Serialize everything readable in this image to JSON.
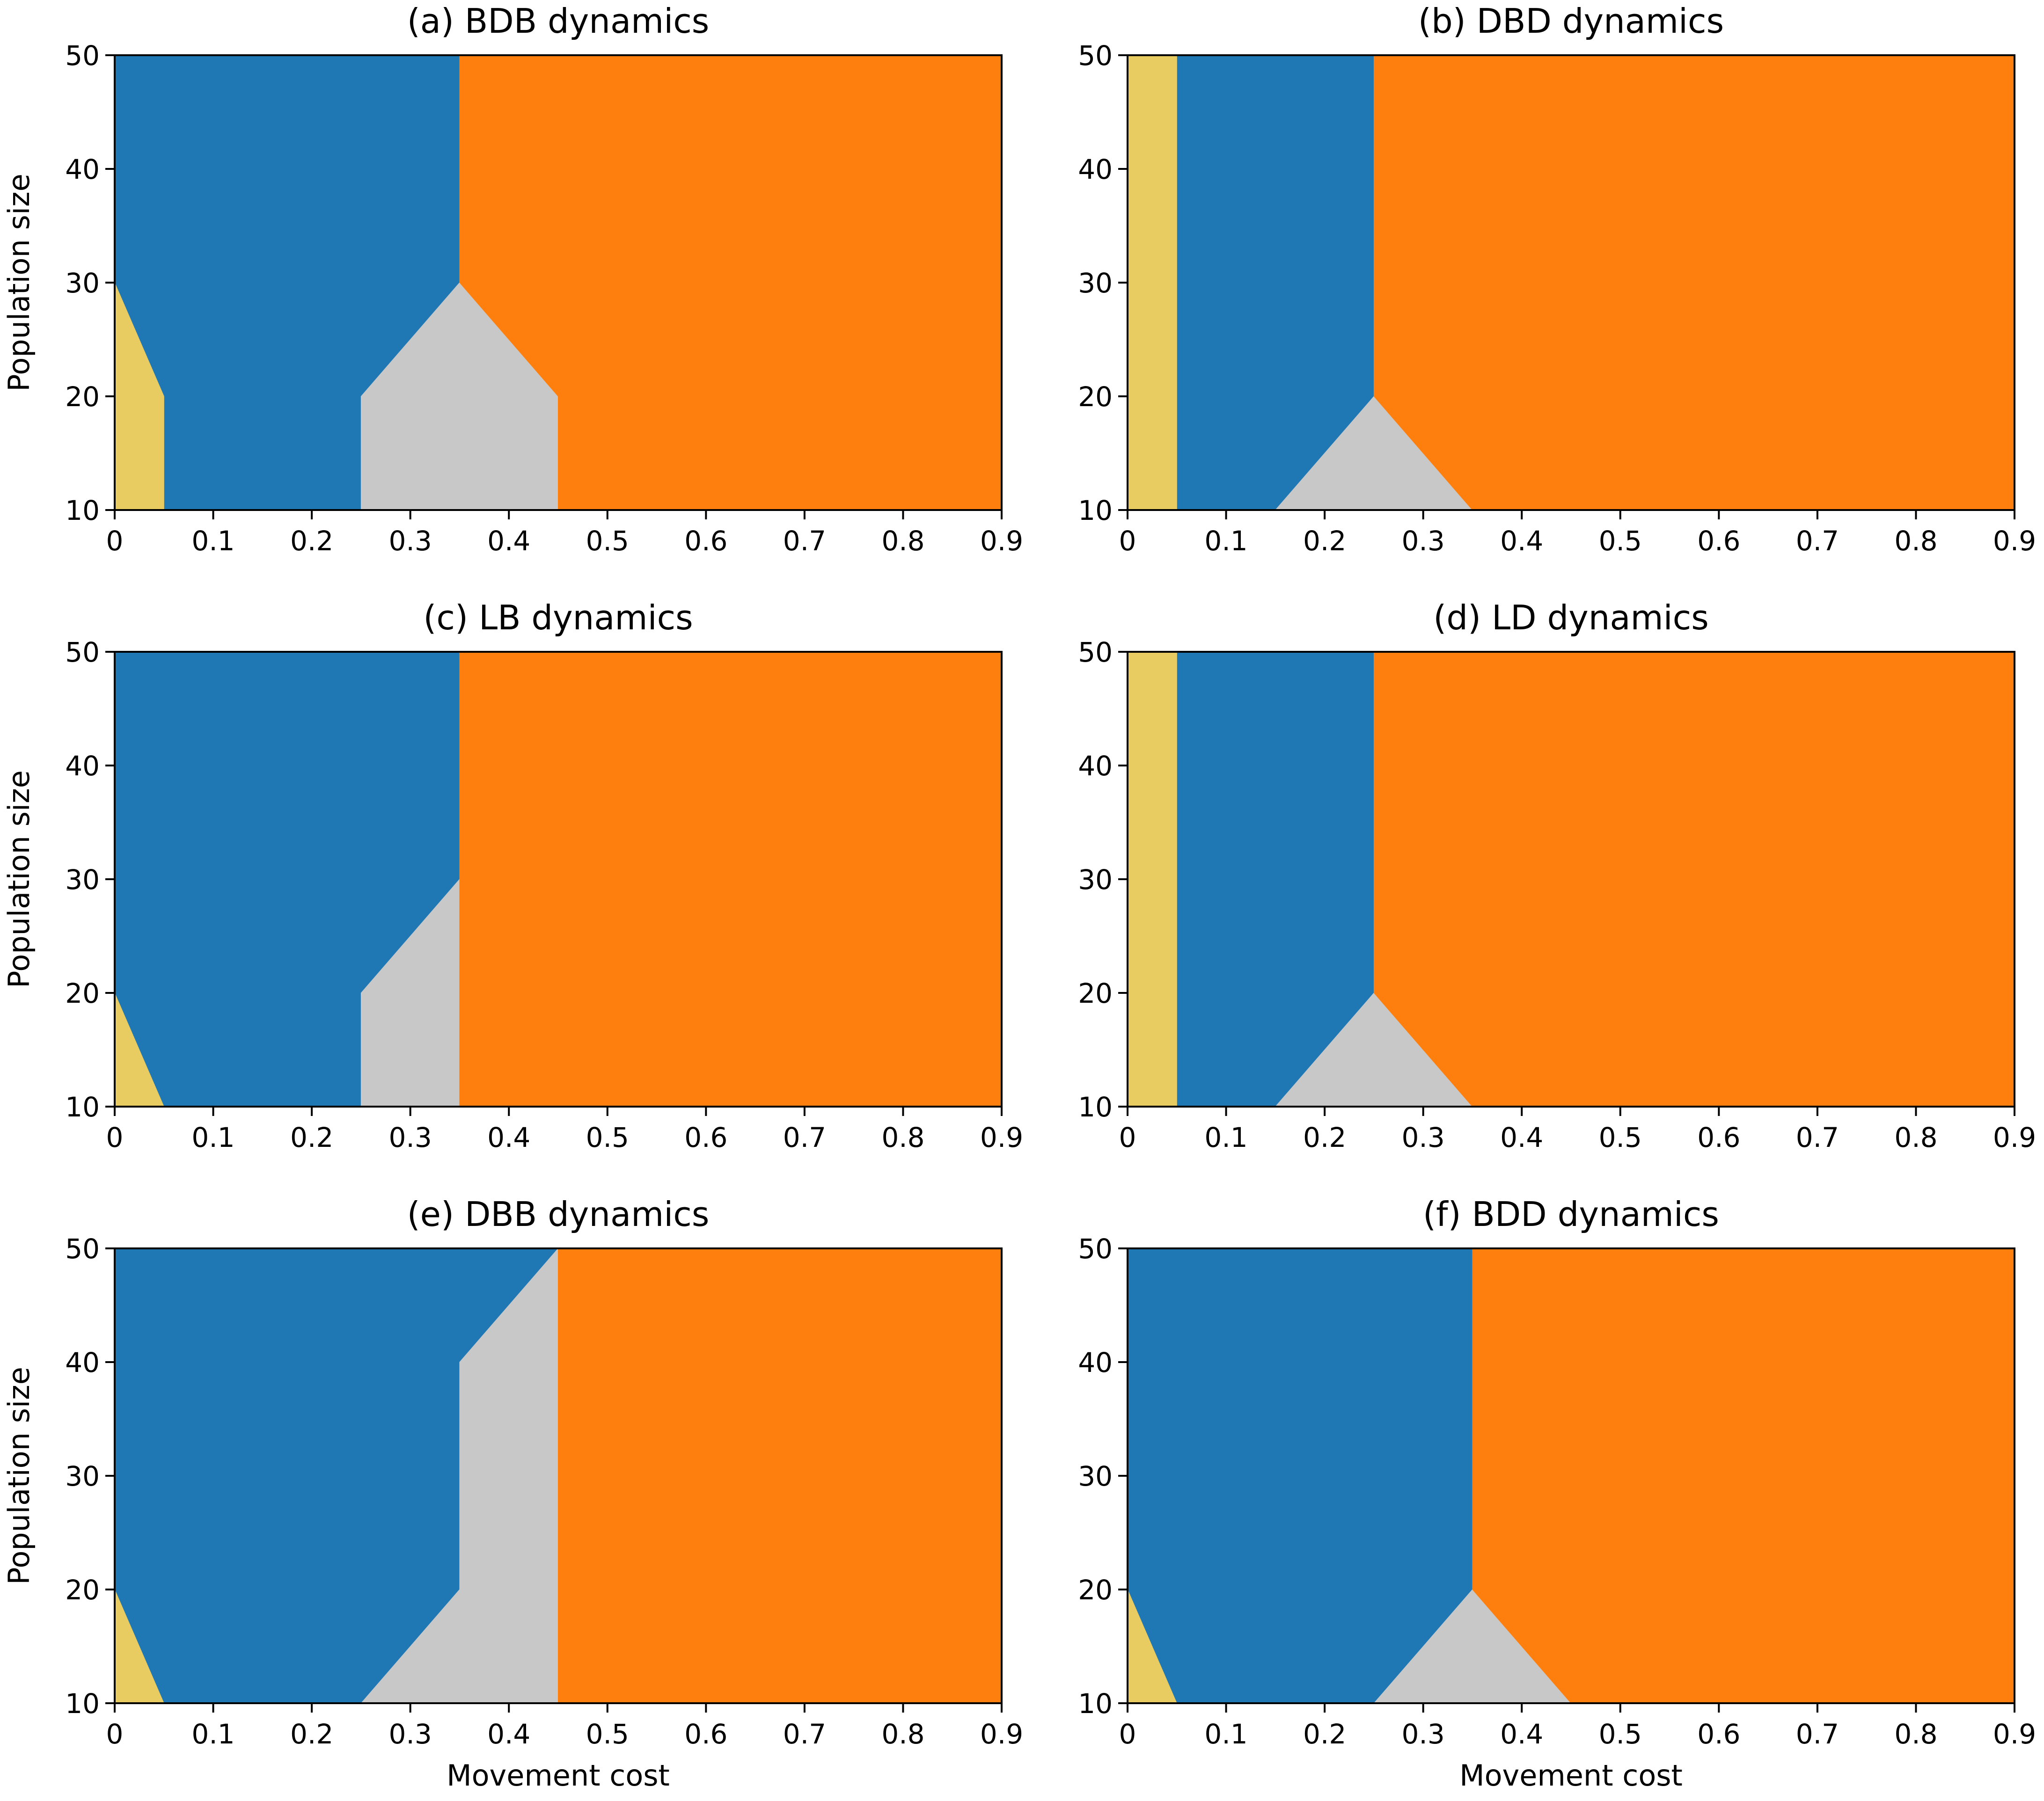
{
  "colors": {
    "yellow": "#e8cc62",
    "blue": "#1f77b4",
    "gray": "#c8c8c8",
    "orange": "#ff7f0e"
  },
  "chart_data": [
    {
      "type": "area",
      "title": "(a) BDB dynamics",
      "xlabel": "",
      "ylabel": "Population size",
      "xlim": [
        0,
        0.9
      ],
      "ylim": [
        10,
        50
      ],
      "xticks": [
        "0",
        "0.1",
        "0.2",
        "0.3",
        "0.4",
        "0.5",
        "0.6",
        "0.7",
        "0.8",
        "0.9"
      ],
      "yticks": [
        "10",
        "20",
        "30",
        "40",
        "50"
      ],
      "regions": [
        {
          "color": "blue",
          "points": [
            [
              0,
              10
            ],
            [
              0.9,
              10
            ],
            [
              0.9,
              50
            ],
            [
              0,
              50
            ]
          ]
        },
        {
          "color": "yellow",
          "points": [
            [
              0,
              10
            ],
            [
              0.05,
              10
            ],
            [
              0.05,
              20
            ],
            [
              0,
              30
            ]
          ]
        },
        {
          "color": "gray",
          "points": [
            [
              0.25,
              10
            ],
            [
              0.45,
              10
            ],
            [
              0.45,
              20
            ],
            [
              0.35,
              30
            ],
            [
              0.25,
              20
            ]
          ]
        },
        {
          "color": "orange",
          "points": [
            [
              0.35,
              50
            ],
            [
              0.35,
              30
            ],
            [
              0.45,
              20
            ],
            [
              0.45,
              10
            ],
            [
              0.9,
              10
            ],
            [
              0.9,
              50
            ]
          ]
        }
      ]
    },
    {
      "type": "area",
      "title": "(b) DBD dynamics",
      "xlabel": "",
      "ylabel": "",
      "xlim": [
        0,
        0.9
      ],
      "ylim": [
        10,
        50
      ],
      "xticks": [
        "0",
        "0.1",
        "0.2",
        "0.3",
        "0.4",
        "0.5",
        "0.6",
        "0.7",
        "0.8",
        "0.9"
      ],
      "yticks": [
        "10",
        "20",
        "30",
        "40",
        "50"
      ],
      "regions": [
        {
          "color": "blue",
          "points": [
            [
              0,
              10
            ],
            [
              0.9,
              10
            ],
            [
              0.9,
              50
            ],
            [
              0,
              50
            ]
          ]
        },
        {
          "color": "yellow",
          "points": [
            [
              0,
              10
            ],
            [
              0.05,
              10
            ],
            [
              0.05,
              50
            ],
            [
              0,
              50
            ]
          ]
        },
        {
          "color": "gray",
          "points": [
            [
              0.15,
              10
            ],
            [
              0.35,
              10
            ],
            [
              0.25,
              20
            ]
          ]
        },
        {
          "color": "orange",
          "points": [
            [
              0.25,
              50
            ],
            [
              0.25,
              20
            ],
            [
              0.35,
              10
            ],
            [
              0.9,
              10
            ],
            [
              0.9,
              50
            ]
          ]
        }
      ]
    },
    {
      "type": "area",
      "title": "(c) LB dynamics",
      "xlabel": "",
      "ylabel": "Population size",
      "xlim": [
        0,
        0.9
      ],
      "ylim": [
        10,
        50
      ],
      "xticks": [
        "0",
        "0.1",
        "0.2",
        "0.3",
        "0.4",
        "0.5",
        "0.6",
        "0.7",
        "0.8",
        "0.9"
      ],
      "yticks": [
        "10",
        "20",
        "30",
        "40",
        "50"
      ],
      "regions": [
        {
          "color": "blue",
          "points": [
            [
              0,
              10
            ],
            [
              0.9,
              10
            ],
            [
              0.9,
              50
            ],
            [
              0,
              50
            ]
          ]
        },
        {
          "color": "yellow",
          "points": [
            [
              0,
              10
            ],
            [
              0.05,
              10
            ],
            [
              0,
              20
            ]
          ]
        },
        {
          "color": "gray",
          "points": [
            [
              0.25,
              10
            ],
            [
              0.35,
              10
            ],
            [
              0.35,
              30
            ],
            [
              0.25,
              20
            ]
          ]
        },
        {
          "color": "orange",
          "points": [
            [
              0.35,
              10
            ],
            [
              0.9,
              10
            ],
            [
              0.9,
              50
            ],
            [
              0.35,
              50
            ]
          ]
        }
      ]
    },
    {
      "type": "area",
      "title": "(d) LD dynamics",
      "xlabel": "",
      "ylabel": "",
      "xlim": [
        0,
        0.9
      ],
      "ylim": [
        10,
        50
      ],
      "xticks": [
        "0",
        "0.1",
        "0.2",
        "0.3",
        "0.4",
        "0.5",
        "0.6",
        "0.7",
        "0.8",
        "0.9"
      ],
      "yticks": [
        "10",
        "20",
        "30",
        "40",
        "50"
      ],
      "regions": [
        {
          "color": "blue",
          "points": [
            [
              0,
              10
            ],
            [
              0.9,
              10
            ],
            [
              0.9,
              50
            ],
            [
              0,
              50
            ]
          ]
        },
        {
          "color": "yellow",
          "points": [
            [
              0,
              10
            ],
            [
              0.05,
              10
            ],
            [
              0.05,
              50
            ],
            [
              0,
              50
            ]
          ]
        },
        {
          "color": "gray",
          "points": [
            [
              0.15,
              10
            ],
            [
              0.35,
              10
            ],
            [
              0.25,
              20
            ]
          ]
        },
        {
          "color": "orange",
          "points": [
            [
              0.25,
              50
            ],
            [
              0.25,
              20
            ],
            [
              0.35,
              10
            ],
            [
              0.9,
              10
            ],
            [
              0.9,
              50
            ]
          ]
        }
      ]
    },
    {
      "type": "area",
      "title": "(e) DBB dynamics",
      "xlabel": "Movement cost",
      "ylabel": "Population size",
      "xlim": [
        0,
        0.9
      ],
      "ylim": [
        10,
        50
      ],
      "xticks": [
        "0",
        "0.1",
        "0.2",
        "0.3",
        "0.4",
        "0.5",
        "0.6",
        "0.7",
        "0.8",
        "0.9"
      ],
      "yticks": [
        "10",
        "20",
        "30",
        "40",
        "50"
      ],
      "regions": [
        {
          "color": "blue",
          "points": [
            [
              0,
              10
            ],
            [
              0.9,
              10
            ],
            [
              0.9,
              50
            ],
            [
              0,
              50
            ]
          ]
        },
        {
          "color": "yellow",
          "points": [
            [
              0,
              10
            ],
            [
              0.05,
              10
            ],
            [
              0,
              20
            ]
          ]
        },
        {
          "color": "gray",
          "points": [
            [
              0.25,
              10
            ],
            [
              0.45,
              10
            ],
            [
              0.45,
              50
            ],
            [
              0.35,
              40
            ],
            [
              0.35,
              20
            ]
          ]
        },
        {
          "color": "orange",
          "points": [
            [
              0.45,
              10
            ],
            [
              0.9,
              10
            ],
            [
              0.9,
              50
            ],
            [
              0.45,
              50
            ]
          ]
        }
      ]
    },
    {
      "type": "area",
      "title": "(f) BDD dynamics",
      "xlabel": "Movement cost",
      "ylabel": "",
      "xlim": [
        0,
        0.9
      ],
      "ylim": [
        10,
        50
      ],
      "xticks": [
        "0",
        "0.1",
        "0.2",
        "0.3",
        "0.4",
        "0.5",
        "0.6",
        "0.7",
        "0.8",
        "0.9"
      ],
      "yticks": [
        "10",
        "20",
        "30",
        "40",
        "50"
      ],
      "regions": [
        {
          "color": "blue",
          "points": [
            [
              0,
              10
            ],
            [
              0.9,
              10
            ],
            [
              0.9,
              50
            ],
            [
              0,
              50
            ]
          ]
        },
        {
          "color": "yellow",
          "points": [
            [
              0,
              10
            ],
            [
              0.05,
              10
            ],
            [
              0,
              20
            ]
          ]
        },
        {
          "color": "gray",
          "points": [
            [
              0.25,
              10
            ],
            [
              0.45,
              10
            ],
            [
              0.35,
              20
            ]
          ]
        },
        {
          "color": "orange",
          "points": [
            [
              0.35,
              50
            ],
            [
              0.35,
              20
            ],
            [
              0.45,
              10
            ],
            [
              0.9,
              10
            ],
            [
              0.9,
              50
            ]
          ]
        }
      ]
    }
  ]
}
